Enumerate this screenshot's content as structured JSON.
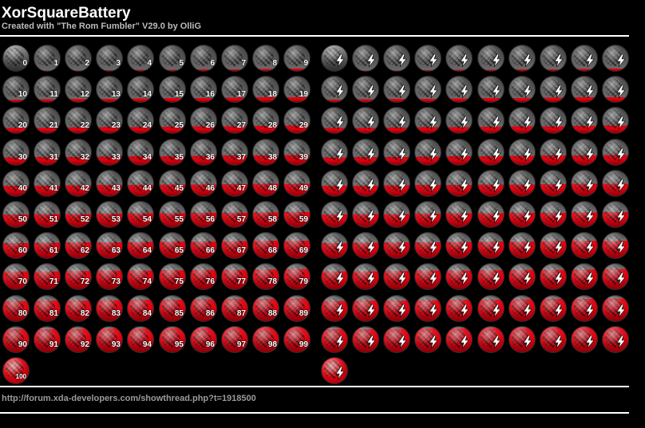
{
  "header": {
    "title": "XorSquareBattery",
    "subtitle": "Created with \"The Rom Fumbler\" V29.0 by OlliG"
  },
  "footer": {
    "link": "http://forum.xda-developers.com/showthread.php?t=1918500"
  },
  "battery_levels": [
    0,
    1,
    2,
    3,
    4,
    5,
    6,
    7,
    8,
    9,
    10,
    11,
    12,
    13,
    14,
    15,
    16,
    17,
    18,
    19,
    20,
    21,
    22,
    23,
    24,
    25,
    26,
    27,
    28,
    29,
    30,
    31,
    32,
    33,
    34,
    35,
    36,
    37,
    38,
    39,
    40,
    41,
    42,
    43,
    44,
    45,
    46,
    47,
    48,
    49,
    50,
    51,
    52,
    53,
    54,
    55,
    56,
    57,
    58,
    59,
    60,
    61,
    62,
    63,
    64,
    65,
    66,
    67,
    68,
    69,
    70,
    71,
    72,
    73,
    74,
    75,
    76,
    77,
    78,
    79,
    80,
    81,
    82,
    83,
    84,
    85,
    86,
    87,
    88,
    89,
    90,
    91,
    92,
    93,
    94,
    95,
    96,
    97,
    98,
    99,
    100
  ],
  "colors": {
    "background": "#000000",
    "empty": "#6a6a6a",
    "fill": "#e0000e",
    "text": "#ffffff",
    "subtitle": "#bdbdbd",
    "link": "#9a9a9a"
  },
  "icons": {
    "level_icon": "battery-level-icon",
    "charging_icon": "battery-charging-icon",
    "charging_symbol": "lightning-bolt-icon"
  }
}
